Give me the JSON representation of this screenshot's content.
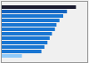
{
  "chart_data": {
    "type": "bar",
    "orientation": "horizontal",
    "values": [
      100,
      88,
      83,
      78,
      74,
      72,
      68,
      65,
      62,
      58,
      54,
      28
    ],
    "colors": [
      "#1a1a2e",
      "#1565c0",
      "#1976d2",
      "#1976d2",
      "#1976d2",
      "#1976d2",
      "#1976d2",
      "#1976d2",
      "#1976d2",
      "#1976d2",
      "#1976d2",
      "#90caf9"
    ],
    "xlim": [
      0,
      115
    ],
    "tick_labels": false
  }
}
